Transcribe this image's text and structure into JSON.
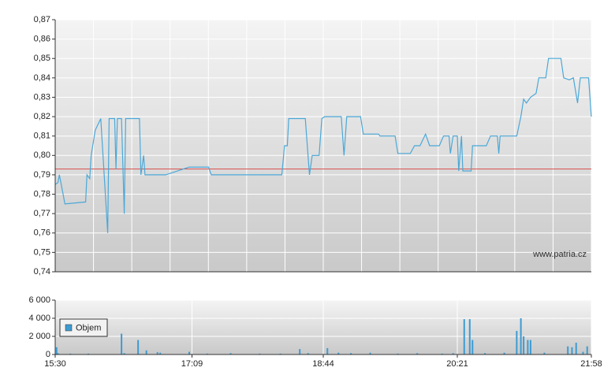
{
  "chart_data": [
    {
      "type": "line",
      "watermark": "www.patria.cz",
      "color": "#4aa8d8",
      "grid": true,
      "reference_line": 0.793,
      "reference_color": "#d9534f",
      "xlim": [
        930,
        1318
      ],
      "ylim": [
        0.74,
        0.87
      ],
      "yticks": [
        {
          "value": 0.74,
          "label": "0,74"
        },
        {
          "value": 0.75,
          "label": "0,75"
        },
        {
          "value": 0.76,
          "label": "0,76"
        },
        {
          "value": 0.77,
          "label": "0,77"
        },
        {
          "value": 0.78,
          "label": "0,78"
        },
        {
          "value": 0.79,
          "label": "0,79"
        },
        {
          "value": 0.8,
          "label": "0,80"
        },
        {
          "value": 0.81,
          "label": "0,81"
        },
        {
          "value": 0.82,
          "label": "0,82"
        },
        {
          "value": 0.83,
          "label": "0,83"
        },
        {
          "value": 0.84,
          "label": "0,84"
        },
        {
          "value": 0.85,
          "label": "0,85"
        },
        {
          "value": 0.86,
          "label": "0,86"
        },
        {
          "value": 0.87,
          "label": "0,87"
        }
      ],
      "x": [
        930,
        932,
        933,
        936,
        937,
        952,
        953,
        955,
        956,
        959,
        963,
        968,
        969,
        973,
        974,
        975,
        978,
        980,
        981,
        991,
        992,
        994,
        995,
        1010,
        1027,
        1041,
        1043,
        1094,
        1096,
        1098,
        1099,
        1111,
        1114,
        1116,
        1121,
        1123,
        1125,
        1137,
        1139,
        1141,
        1151,
        1153,
        1164,
        1165,
        1176,
        1178,
        1187,
        1190,
        1194,
        1196,
        1198,
        1201,
        1208,
        1211,
        1215,
        1216,
        1218,
        1221,
        1222,
        1224,
        1225,
        1231,
        1232,
        1242,
        1245,
        1250,
        1251,
        1252,
        1264,
        1267,
        1269,
        1271,
        1274,
        1278,
        1280,
        1285,
        1287,
        1296,
        1298,
        1302,
        1305,
        1308,
        1310,
        1316,
        1318
      ],
      "values": [
        0.785,
        0.786,
        0.79,
        0.779,
        0.775,
        0.776,
        0.79,
        0.788,
        0.8,
        0.813,
        0.819,
        0.76,
        0.819,
        0.819,
        0.793,
        0.819,
        0.819,
        0.77,
        0.819,
        0.819,
        0.79,
        0.8,
        0.79,
        0.79,
        0.794,
        0.794,
        0.79,
        0.79,
        0.805,
        0.805,
        0.819,
        0.819,
        0.79,
        0.8,
        0.8,
        0.819,
        0.82,
        0.82,
        0.8,
        0.82,
        0.82,
        0.811,
        0.811,
        0.81,
        0.81,
        0.801,
        0.801,
        0.805,
        0.805,
        0.808,
        0.811,
        0.805,
        0.805,
        0.81,
        0.81,
        0.801,
        0.81,
        0.81,
        0.792,
        0.81,
        0.792,
        0.792,
        0.805,
        0.805,
        0.81,
        0.81,
        0.801,
        0.81,
        0.81,
        0.82,
        0.829,
        0.827,
        0.83,
        0.832,
        0.84,
        0.84,
        0.85,
        0.85,
        0.84,
        0.839,
        0.84,
        0.827,
        0.84,
        0.84,
        0.82
      ]
    },
    {
      "type": "bar",
      "legend": "top-left",
      "grid": true,
      "xlim": [
        930,
        1318
      ],
      "ylim": [
        0,
        6000
      ],
      "xticks": [
        {
          "value": 930,
          "label": "15:30"
        },
        {
          "value": 1029,
          "label": "17:09"
        },
        {
          "value": 1124,
          "label": "18:44"
        },
        {
          "value": 1221,
          "label": "20:21"
        },
        {
          "value": 1318,
          "label": "21:58"
        }
      ],
      "yticks": [
        0,
        {
          "value": 2000,
          "label": "2 000"
        },
        {
          "value": 4000,
          "label": "4 000"
        },
        {
          "value": 6000,
          "label": "6 000"
        }
      ],
      "x": [
        931,
        932,
        941,
        954,
        978,
        980,
        990,
        996,
        1004,
        1006,
        1027,
        1040,
        1057,
        1078,
        1093,
        1107,
        1113,
        1127,
        1135,
        1144,
        1158,
        1178,
        1192,
        1210,
        1218,
        1226,
        1230,
        1232,
        1241,
        1255,
        1264,
        1267,
        1269,
        1272,
        1274,
        1284,
        1301,
        1304,
        1307,
        1312,
        1315
      ],
      "series": [
        {
          "name": "Objem",
          "color": "#3d9bd1",
          "values": [
            800,
            150,
            100,
            100,
            2300,
            150,
            1600,
            450,
            250,
            200,
            300,
            100,
            150,
            100,
            100,
            600,
            150,
            700,
            200,
            150,
            200,
            100,
            150,
            100,
            150,
            3900,
            3900,
            1600,
            150,
            200,
            2600,
            4000,
            2000,
            1600,
            1600,
            200,
            900,
            800,
            1300,
            300,
            900
          ]
        }
      ]
    }
  ]
}
